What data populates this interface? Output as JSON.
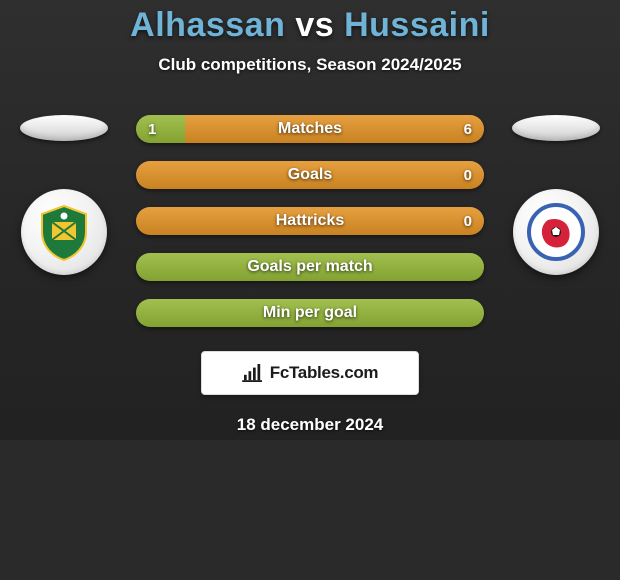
{
  "title": {
    "player1": "Alhassan",
    "vs": "vs",
    "player2": "Hussaini",
    "player1_color": "#6fb4d6",
    "vs_color": "#ffffff",
    "player2_color": "#6fb4d6",
    "fontsize": 34
  },
  "subtitle": "Club competitions, Season 2024/2025",
  "bars": [
    {
      "label": "Matches",
      "left_value": "1",
      "right_value": "6",
      "left_pct": 14,
      "right_pct": 86,
      "left_color": "#8fae3d",
      "right_color": "#d58e2d"
    },
    {
      "label": "Goals",
      "left_value": "",
      "right_value": "0",
      "left_pct": 0,
      "right_pct": 100,
      "left_color": "#8fae3d",
      "right_color": "#d58e2d"
    },
    {
      "label": "Hattricks",
      "left_value": "",
      "right_value": "0",
      "left_pct": 0,
      "right_pct": 100,
      "left_color": "#8fae3d",
      "right_color": "#d58e2d"
    },
    {
      "label": "Goals per match",
      "left_value": "",
      "right_value": "",
      "left_pct": 100,
      "right_pct": 0,
      "left_color": "#8fae3d",
      "right_color": "#d58e2d"
    },
    {
      "label": "Min per goal",
      "left_value": "",
      "right_value": "",
      "left_pct": 100,
      "right_pct": 0,
      "left_color": "#8fae3d",
      "right_color": "#d58e2d"
    }
  ],
  "bar_style": {
    "height": 28,
    "radius": 14,
    "gap": 18,
    "label_color": "#ffffff",
    "label_fontsize": 16
  },
  "left_team": {
    "crest_primary": "#1e7a3a",
    "crest_secondary": "#f2c531",
    "crest_accent": "#ffffff"
  },
  "right_team": {
    "crest_primary": "#3a62b3",
    "crest_secondary": "#d6213b",
    "crest_accent": "#ffffff"
  },
  "brand": {
    "text": "FcTables.com",
    "icon_color": "#1b1b1b",
    "box_bg": "#ffffff"
  },
  "date": "18 december 2024",
  "background_color": "#2a2a2a"
}
